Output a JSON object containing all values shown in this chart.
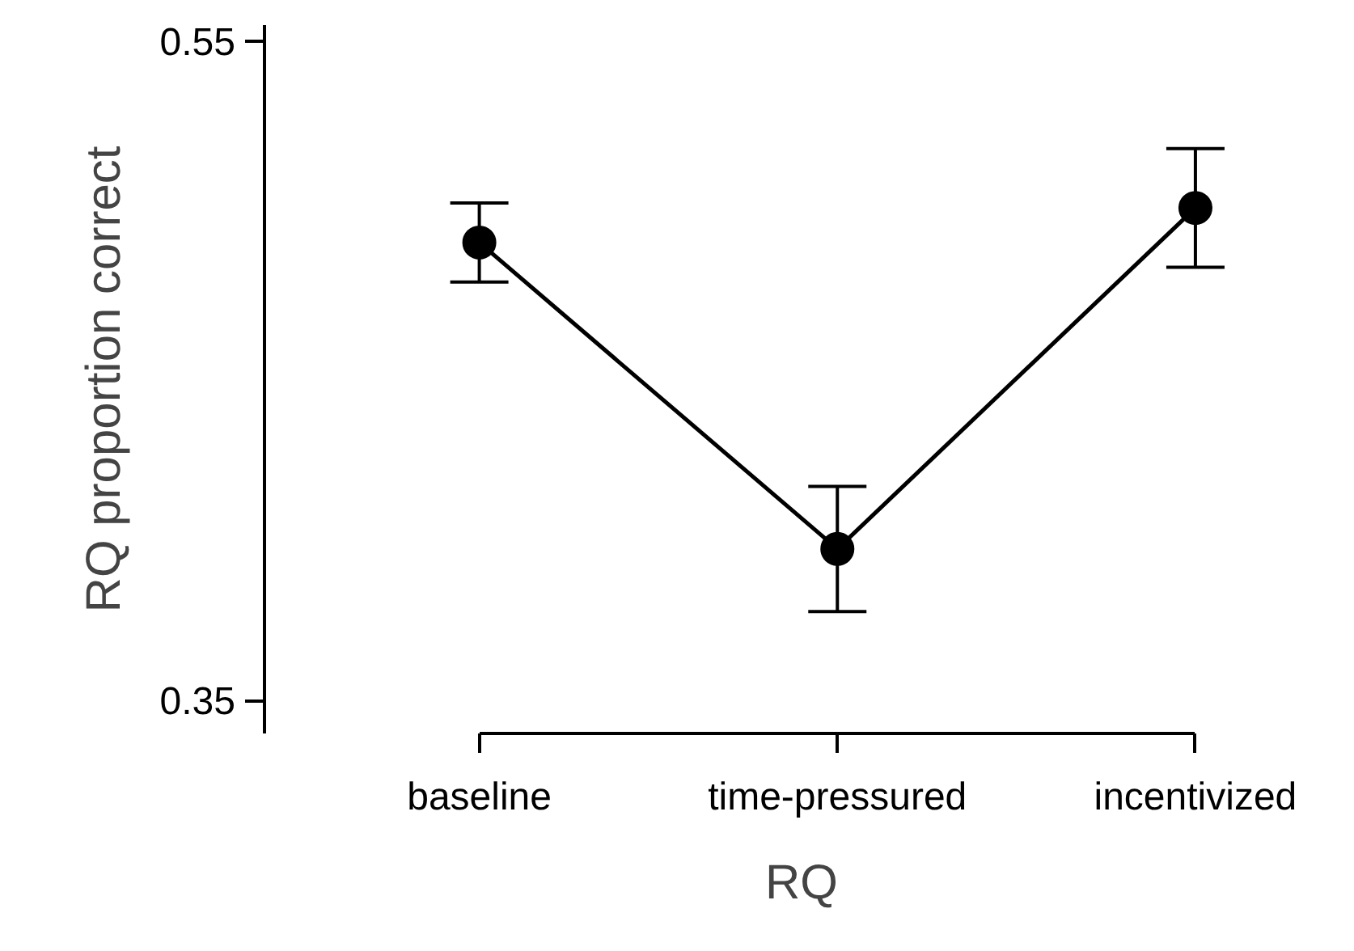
{
  "chart_data": {
    "type": "line",
    "xlabel": "RQ",
    "ylabel": "RQ proportion correct",
    "categories": [
      "baseline",
      "time-pressured",
      "incentivized"
    ],
    "values": [
      0.489,
      0.396,
      0.4995
    ],
    "errors": [
      0.012,
      0.019,
      0.018
    ],
    "color": "#000000",
    "marker": "circle",
    "line_style": "solid",
    "grid": false,
    "ylim": [
      0.34,
      0.555
    ],
    "yticks": [
      0.35,
      0.55
    ]
  }
}
